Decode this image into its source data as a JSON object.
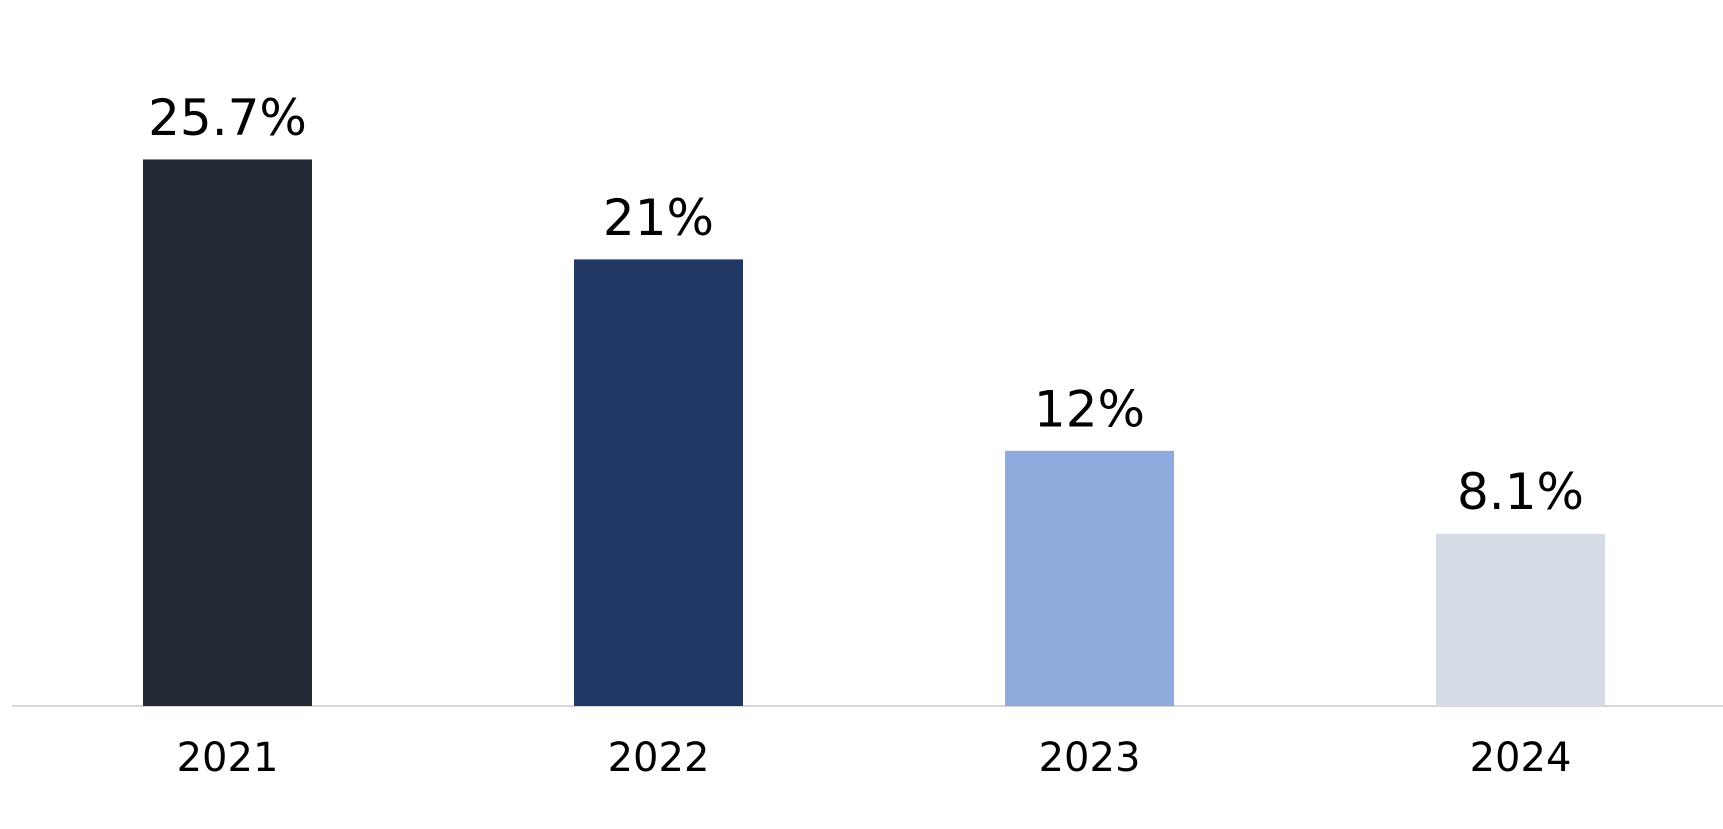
{
  "chart_data": {
    "type": "bar",
    "categories": [
      "2021",
      "2022",
      "2023",
      "2024"
    ],
    "values": [
      25.7,
      21,
      12,
      8.1
    ],
    "value_labels": [
      "25.7%",
      "21%",
      "12%",
      "8.1%"
    ],
    "colors": [
      "#242a35",
      "#213864",
      "#8fabdd",
      "#d5dce6"
    ],
    "ylim": [
      0,
      30
    ]
  }
}
